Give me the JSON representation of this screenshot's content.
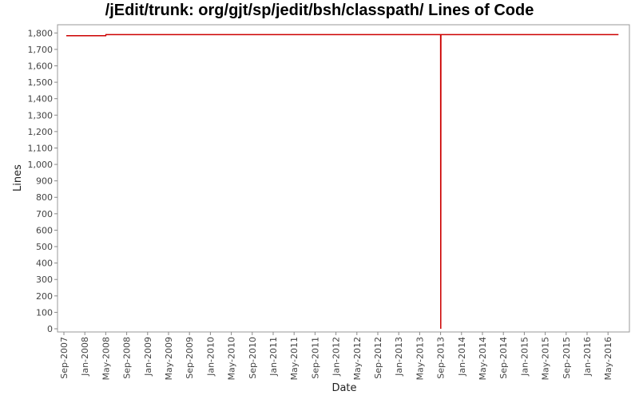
{
  "chart_data": {
    "type": "line",
    "title": "/jEdit/trunk: org/gjt/sp/jedit/bsh/classpath/ Lines of Code",
    "xlabel": "Date",
    "ylabel": "Lines",
    "ylim": [
      0,
      1850
    ],
    "y_ticks": [
      0,
      100,
      200,
      300,
      400,
      500,
      600,
      700,
      800,
      900,
      1000,
      1100,
      1200,
      1300,
      1400,
      1500,
      1600,
      1700,
      1800
    ],
    "y_tick_labels": [
      "0",
      "100",
      "200",
      "300",
      "400",
      "500",
      "600",
      "700",
      "800",
      "900",
      "1,000",
      "1,100",
      "1,200",
      "1,300",
      "1,400",
      "1,500",
      "1,600",
      "1,700",
      "1,800"
    ],
    "x_tick_labels": [
      "Sep-2007",
      "Jan-2008",
      "May-2008",
      "Sep-2008",
      "Jan-2009",
      "May-2009",
      "Sep-2009",
      "Jan-2010",
      "May-2010",
      "Sep-2010",
      "Jan-2011",
      "May-2011",
      "Sep-2011",
      "Jan-2012",
      "May-2012",
      "Sep-2012",
      "Jan-2013",
      "May-2013",
      "Sep-2013",
      "Jan-2014",
      "May-2014",
      "Sep-2014",
      "Jan-2015",
      "May-2015",
      "Sep-2015",
      "Jan-2016",
      "May-2016"
    ],
    "grid": false,
    "line_color": "#cc0000",
    "series": [
      {
        "points": [
          {
            "x": "2007-09-15",
            "y": 1783
          },
          {
            "x": "2008-05-01",
            "y": 1783
          },
          {
            "x": "2008-05-02",
            "y": 1790
          },
          {
            "x": "2013-09-01",
            "y": 1790
          },
          {
            "x": "2013-09-02",
            "y": 0
          },
          {
            "x": "2013-09-03",
            "y": 1790
          },
          {
            "x": "2016-07-01",
            "y": 1790
          }
        ]
      }
    ]
  }
}
